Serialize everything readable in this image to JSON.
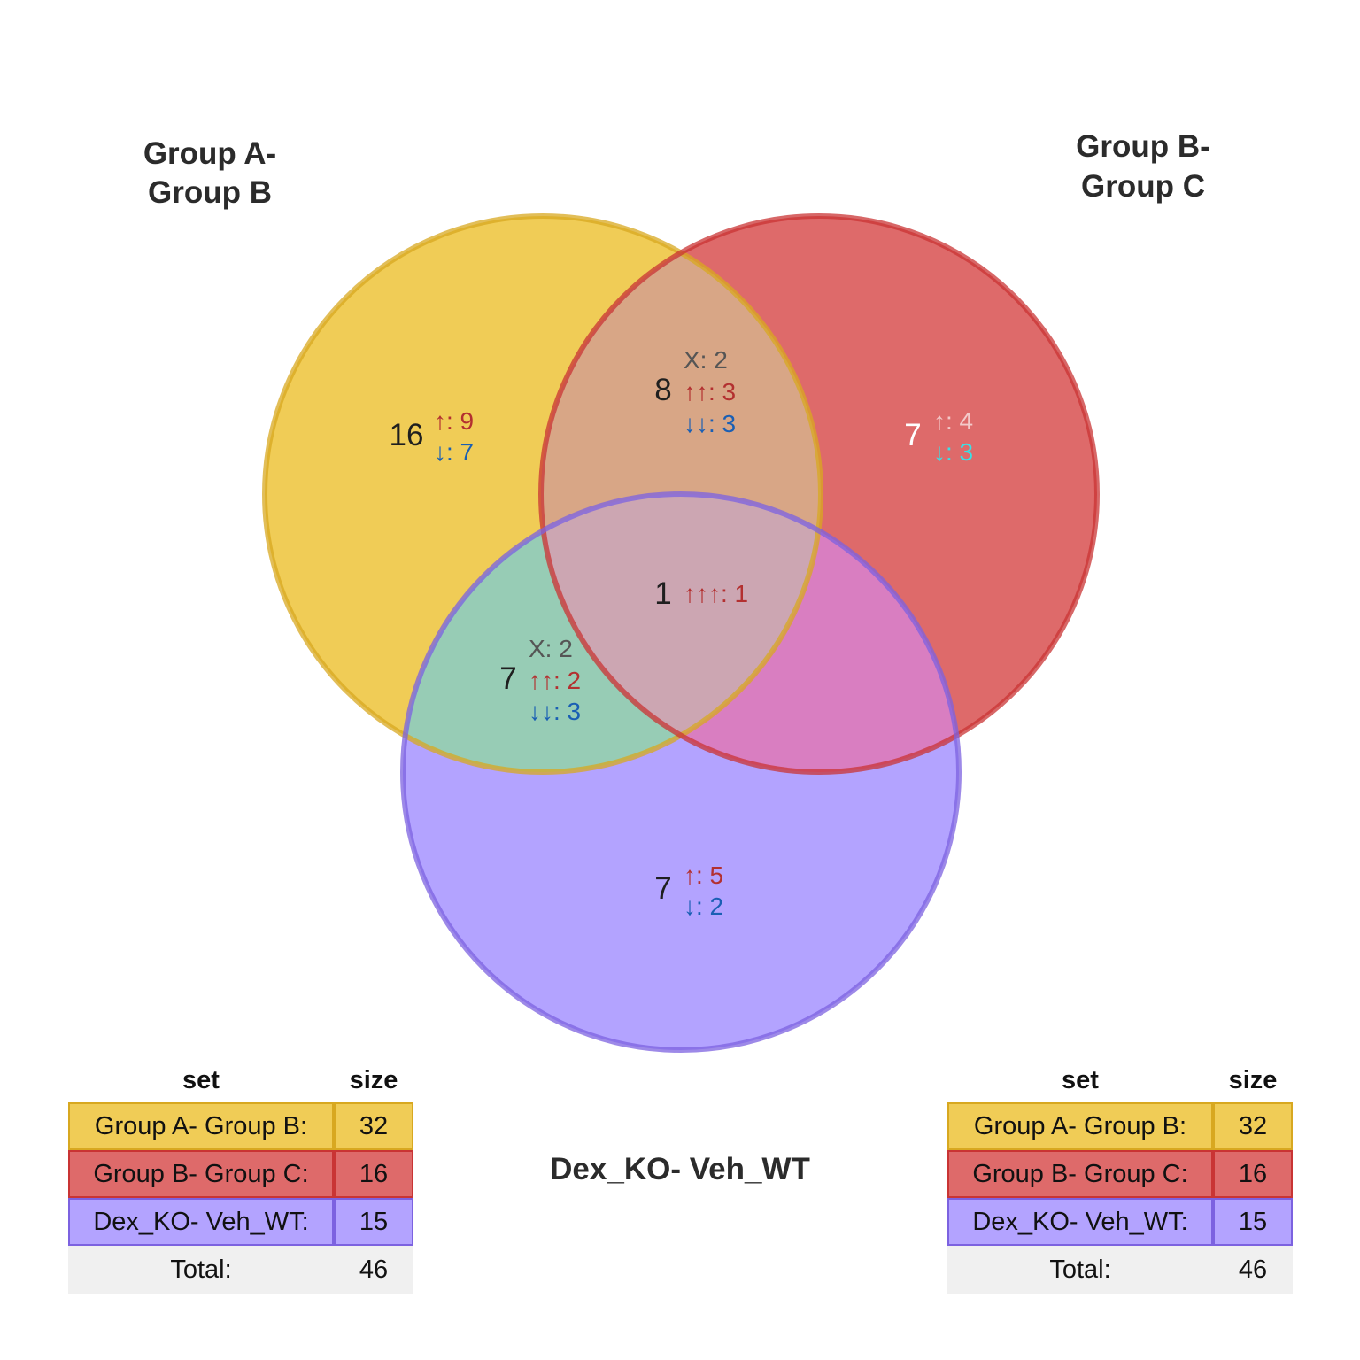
{
  "sets": [
    {
      "key": "A",
      "title_line1": "Group A-",
      "title_line2": "Group B",
      "fill": "#f0cc56",
      "stroke": "#d8a820"
    },
    {
      "key": "B",
      "title_line1": "Group B-",
      "title_line2": "Group C",
      "fill": "#de6a6a",
      "stroke": "#c93434"
    },
    {
      "key": "C",
      "title_line1": "Dex_KO- Veh_WT",
      "title_line2": "",
      "fill": "#b3a3ff",
      "stroke": "#7c62e0"
    }
  ],
  "overlap_colors": {
    "A_B": "#d8a686",
    "A_C": "#97ccb5",
    "B_C": "#d97ec1",
    "A_B_C": "#cca6b2"
  },
  "annotation_colors": {
    "up": "#b33030",
    "down": "#1a5fb4",
    "mixed": "#555555",
    "up_light": "#f3c9c9",
    "down_light": "#39e0e6"
  },
  "regions": {
    "A_only": {
      "count": "16",
      "up": "↑: 9",
      "down": "↓: 7"
    },
    "B_only": {
      "count": "7",
      "up": "↑: 4",
      "down": "↓: 3"
    },
    "C_only": {
      "count": "7",
      "up": "↑: 5",
      "down": "↓: 2"
    },
    "A_B": {
      "count": "8",
      "mixed": "X: 2",
      "up": "↑↑: 3",
      "down": "↓↓: 3"
    },
    "A_C": {
      "count": "7",
      "mixed": "X: 2",
      "up": "↑↑: 2",
      "down": "↓↓: 3"
    },
    "A_B_C": {
      "count": "1",
      "up": "↑↑↑: 1"
    }
  },
  "tables": [
    {
      "header_set": "set",
      "header_size": "size",
      "rows": [
        {
          "label": "Group A- Group B:",
          "size": "32"
        },
        {
          "label": "Group B- Group C:",
          "size": "16"
        },
        {
          "label": "Dex_KO- Veh_WT:",
          "size": "15"
        }
      ],
      "total_label": "Total:",
      "total_value": "46"
    },
    {
      "header_set": "set",
      "header_size": "size",
      "rows": [
        {
          "label": "Group A- Group B:",
          "size": "32"
        },
        {
          "label": "Group B- Group C:",
          "size": "16"
        },
        {
          "label": "Dex_KO- Veh_WT:",
          "size": "15"
        }
      ],
      "total_label": "Total:",
      "total_value": "46"
    }
  ]
}
